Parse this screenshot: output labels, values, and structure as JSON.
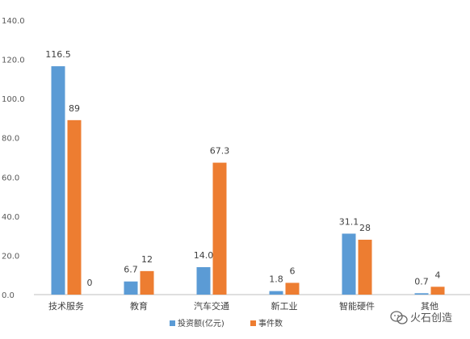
{
  "chart_data": {
    "type": "bar",
    "categories": [
      "技术服务",
      "教育",
      "汽车交通",
      "新工业",
      "智能硬件",
      "其他"
    ],
    "series": [
      {
        "name": "投资额(亿元)",
        "color": "#5B9BD5",
        "values": [
          116.5,
          6.7,
          14.0,
          1.8,
          31.1,
          0.7
        ],
        "labels": [
          "116.5",
          "6.7",
          "14.0",
          "1.8",
          "31.1",
          "0.7"
        ]
      },
      {
        "name": "事件数",
        "color": "#ED7D31",
        "values": [
          89,
          12,
          67.3,
          6,
          28,
          4
        ],
        "labels": [
          "89",
          "12",
          "67.3",
          "6",
          "28",
          "4"
        ]
      }
    ],
    "extra_labels": [
      {
        "category_index": 0,
        "text": "0"
      }
    ],
    "ylim": [
      0,
      140
    ],
    "yticks": [
      "0.0",
      "20.0",
      "40.0",
      "60.0",
      "80.0",
      "100.0",
      "120.0",
      "140.0"
    ],
    "legend_position": "bottom",
    "grid": false
  },
  "watermark": {
    "text": "火石创造",
    "icon": "wechat-icon"
  }
}
